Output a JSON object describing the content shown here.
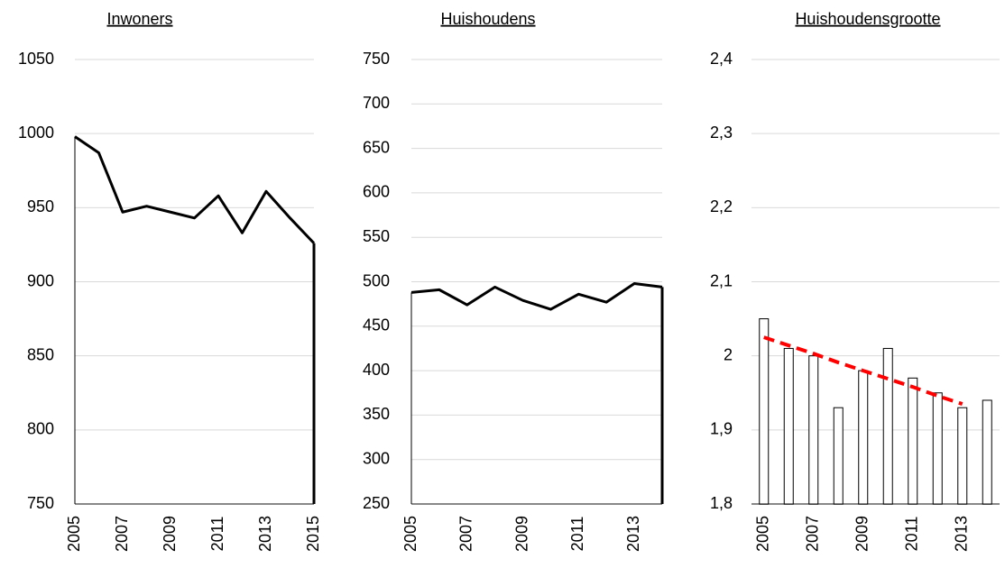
{
  "chart_data": [
    {
      "type": "area",
      "title": "Inwoners",
      "color": "#000000",
      "x": [
        2005,
        2006,
        2007,
        2008,
        2009,
        2010,
        2011,
        2012,
        2013,
        2014,
        2015
      ],
      "values": [
        998,
        987,
        947,
        951,
        947,
        943,
        958,
        933,
        961,
        943,
        926
      ],
      "xlim": [
        2005,
        2015
      ],
      "xticks": [
        2005,
        2007,
        2009,
        2011,
        2013,
        2015
      ],
      "ylim": [
        750,
        1050
      ],
      "yticks": [
        750,
        800,
        850,
        900,
        950,
        1000,
        1050
      ],
      "grid": true
    },
    {
      "type": "area",
      "title": "Huishoudens",
      "color": "#000000",
      "x": [
        2005,
        2006,
        2007,
        2008,
        2009,
        2010,
        2011,
        2012,
        2013,
        2014
      ],
      "values": [
        488,
        491,
        474,
        494,
        479,
        469,
        486,
        477,
        498,
        494
      ],
      "xlim": [
        2005,
        2014
      ],
      "xticks": [
        2005,
        2007,
        2009,
        2011,
        2013
      ],
      "ylim": [
        250,
        750
      ],
      "yticks": [
        250,
        300,
        350,
        400,
        450,
        500,
        550,
        600,
        650,
        700,
        750
      ],
      "grid": true
    },
    {
      "type": "bar",
      "title": "Huishoudensgrootte",
      "color": "#ffffff",
      "categories": [
        "2005",
        null,
        "2007",
        null,
        "2009",
        null,
        "2011",
        null,
        "2013",
        null
      ],
      "values": [
        2.05,
        2.01,
        2.0,
        1.93,
        1.98,
        2.01,
        1.97,
        1.95,
        1.93,
        1.94
      ],
      "trendline": {
        "color": "#ff0000",
        "values": [
          2.025,
          2.014,
          2.003,
          1.991,
          1.98,
          1.969,
          1.958,
          1.946,
          1.935,
          null
        ]
      },
      "ylim": [
        1.8,
        2.4
      ],
      "yticks": [
        {
          "value": 1.8,
          "label": "1,8"
        },
        {
          "value": 1.9,
          "label": "1,9"
        },
        2,
        {
          "value": 2.1,
          "label": "2,1"
        },
        {
          "value": 2.2,
          "label": "2,2"
        },
        {
          "value": 2.3,
          "label": "2,3"
        },
        {
          "value": 2.4,
          "label": "2,4"
        }
      ],
      "grid": true
    }
  ]
}
